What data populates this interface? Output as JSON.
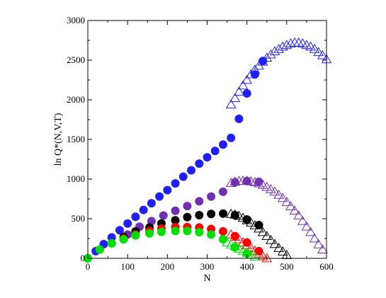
{
  "chart_data": {
    "type": "scatter",
    "xlabel": "N",
    "ylabel": "ln Q*(N,V,T)",
    "xlim": [
      0,
      600
    ],
    "ylim": [
      0,
      3000
    ],
    "xticks": [
      "0",
      "100",
      "200",
      "300",
      "400",
      "500",
      "600"
    ],
    "yticks": [
      "0",
      "500",
      "1000",
      "1500",
      "2000",
      "2500",
      "3000"
    ],
    "grid": false,
    "legend": "none",
    "series": [
      {
        "color": "#2020f0",
        "marker": "filled-circle",
        "x": [
          0,
          20,
          40,
          60,
          80,
          100,
          120,
          140,
          160,
          180,
          200,
          220,
          240,
          260,
          280,
          300,
          320,
          340,
          360,
          380,
          400,
          420,
          440
        ],
        "y": [
          0,
          90,
          180,
          265,
          355,
          440,
          525,
          610,
          695,
          780,
          860,
          945,
          1030,
          1110,
          1195,
          1275,
          1355,
          1435,
          1520,
          1760,
          2080,
          2320,
          2490
        ]
      },
      {
        "color": "#2020f0",
        "marker": "open-triangle",
        "x": [
          360,
          370,
          380,
          390,
          400,
          410,
          420,
          430,
          440,
          450,
          460,
          470,
          480,
          490,
          500,
          510,
          520,
          530,
          540,
          550,
          560,
          570,
          580,
          590,
          600
        ],
        "y": [
          1940,
          2020,
          2100,
          2180,
          2250,
          2320,
          2380,
          2430,
          2480,
          2530,
          2570,
          2610,
          2640,
          2670,
          2690,
          2710,
          2720,
          2720,
          2710,
          2690,
          2670,
          2640,
          2600,
          2560,
          2510
        ]
      },
      {
        "color": "#7030b0",
        "marker": "filled-circle",
        "x": [
          100,
          130,
          160,
          190,
          220,
          250,
          280,
          310,
          340,
          370,
          400,
          430
        ],
        "y": [
          300,
          400,
          470,
          540,
          600,
          660,
          720,
          780,
          840,
          960,
          975,
          965
        ]
      },
      {
        "color": "#7030b0",
        "marker": "open-triangle",
        "x": [
          360,
          370,
          380,
          390,
          400,
          410,
          420,
          430,
          440,
          450,
          460,
          470,
          480,
          490,
          500,
          510,
          520,
          530,
          540,
          550,
          560,
          570,
          580,
          590
        ],
        "y": [
          950,
          965,
          975,
          978,
          976,
          970,
          960,
          945,
          925,
          900,
          870,
          840,
          800,
          760,
          710,
          655,
          600,
          540,
          470,
          400,
          330,
          250,
          175,
          110
        ]
      },
      {
        "color": "#000000",
        "marker": "filled-circle",
        "x": [
          90,
          120,
          155,
          185,
          220,
          250,
          280,
          310,
          340,
          370,
          400,
          430
        ],
        "y": [
          270,
          340,
          390,
          440,
          480,
          520,
          545,
          560,
          565,
          545,
          490,
          420
        ]
      },
      {
        "color": "#000000",
        "marker": "open-triangle",
        "x": [
          360,
          370,
          380,
          390,
          400,
          410,
          420,
          430,
          440,
          450,
          460,
          470,
          480,
          490,
          500
        ],
        "y": [
          560,
          550,
          535,
          510,
          480,
          450,
          415,
          375,
          330,
          280,
          230,
          180,
          130,
          85,
          40
        ]
      },
      {
        "color": "#ff0000",
        "marker": "filled-circle",
        "x": [
          60,
          90,
          120,
          155,
          185,
          220,
          250,
          280,
          310,
          340,
          370,
          400,
          430
        ],
        "y": [
          190,
          250,
          300,
          345,
          375,
          395,
          395,
          390,
          370,
          340,
          280,
          200,
          90
        ]
      },
      {
        "color": "#ff0000",
        "marker": "open-triangle",
        "x": [
          360,
          370,
          380,
          390,
          400,
          410,
          420,
          430,
          440,
          450
        ],
        "y": [
          300,
          270,
          240,
          200,
          165,
          130,
          95,
          60,
          25,
          0
        ]
      },
      {
        "color": "#00e000",
        "marker": "filled-circle",
        "x": [
          0,
          30,
          60,
          90,
          120,
          155,
          185,
          220,
          250,
          280,
          310,
          340,
          370,
          400
        ],
        "y": [
          0,
          110,
          190,
          240,
          290,
          315,
          335,
          345,
          345,
          330,
          300,
          240,
          140,
          60
        ]
      },
      {
        "color": "#00e000",
        "marker": "open-triangle",
        "x": [
          350,
          360,
          370,
          380,
          390,
          400,
          410,
          420
        ],
        "y": [
          200,
          175,
          150,
          120,
          95,
          70,
          45,
          20
        ]
      }
    ]
  }
}
